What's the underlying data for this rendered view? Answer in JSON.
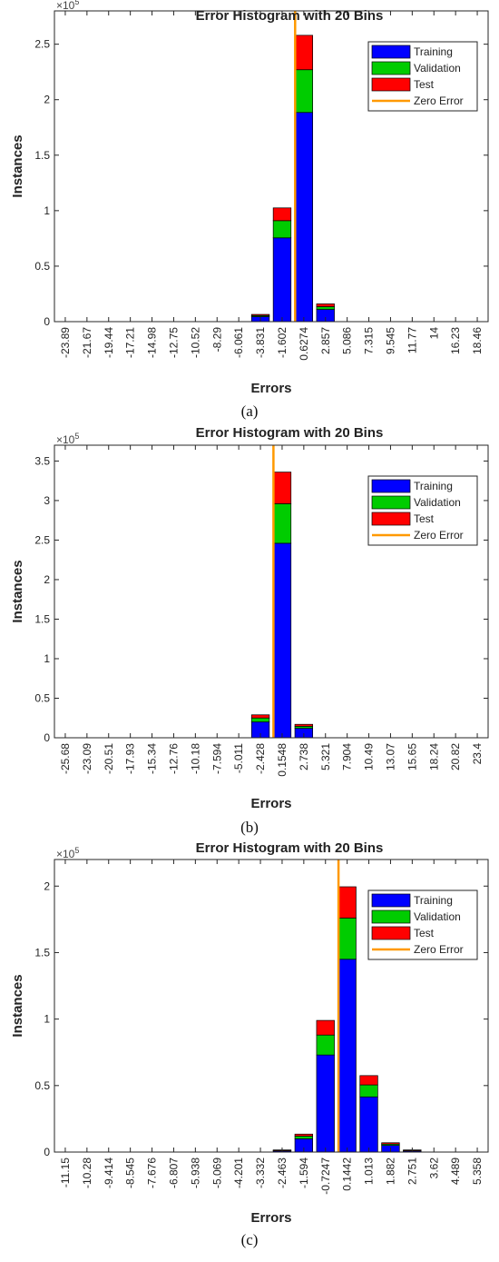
{
  "colors": {
    "training": "#0000ff",
    "validation": "#00cc00",
    "test": "#ff0000",
    "zero_error": "#ff9900",
    "axis": "#262626"
  },
  "chart_data": [
    {
      "type": "bar",
      "stacked": true,
      "title": "Error Histogram with 20 Bins",
      "xlabel": "Errors",
      "ylabel": "Instances",
      "y_multiplier": "×10",
      "y_multiplier_exp": "5",
      "caption": "(a)",
      "categories": [
        "-23.89",
        "-21.67",
        "-19.44",
        "-17.21",
        "-14.98",
        "-12.75",
        "-10.52",
        "-8.29",
        "-6.061",
        "-3.831",
        "-1.602",
        "0.6274",
        "2.857",
        "5.086",
        "7.315",
        "9.545",
        "11.77",
        "14",
        "16.23",
        "18.46"
      ],
      "series": [
        {
          "name": "Training",
          "values": [
            0,
            0,
            0,
            0,
            0,
            0,
            0,
            0,
            0,
            0.045,
            0.755,
            1.885,
            0.11,
            0,
            0,
            0,
            0,
            0,
            0,
            0
          ]
        },
        {
          "name": "Validation",
          "values": [
            0,
            0,
            0,
            0,
            0,
            0,
            0,
            0,
            0,
            0.01,
            0.155,
            0.385,
            0.025,
            0,
            0,
            0,
            0,
            0,
            0,
            0
          ]
        },
        {
          "name": "Test",
          "values": [
            0,
            0,
            0,
            0,
            0,
            0,
            0,
            0,
            0,
            0.01,
            0.115,
            0.31,
            0.025,
            0,
            0,
            0,
            0,
            0,
            0,
            0
          ]
        }
      ],
      "zero_error_label": "Zero Error",
      "zero_error_category": "0.6274",
      "ylim": [
        0,
        2.8
      ],
      "yticks": [
        0,
        0.5,
        1,
        1.5,
        2,
        2.5
      ],
      "ytick_labels": [
        "0",
        "0.5",
        "1",
        "1.5",
        "2",
        "2.5"
      ],
      "legend": "top-right"
    },
    {
      "type": "bar",
      "stacked": true,
      "title": "Error Histogram with 20 Bins",
      "xlabel": "Errors",
      "ylabel": "Instances",
      "y_multiplier": "×10",
      "y_multiplier_exp": "5",
      "caption": "(b)",
      "categories": [
        "-25.68",
        "-23.09",
        "-20.51",
        "-17.93",
        "-15.34",
        "-12.76",
        "-10.18",
        "-7.594",
        "-5.011",
        "-2.428",
        "0.1548",
        "2.738",
        "5.321",
        "7.904",
        "10.49",
        "13.07",
        "15.65",
        "18.24",
        "20.82",
        "23.4"
      ],
      "series": [
        {
          "name": "Training",
          "values": [
            0,
            0,
            0,
            0,
            0,
            0,
            0,
            0,
            0,
            0.2,
            2.46,
            0.12,
            0,
            0,
            0,
            0,
            0,
            0,
            0,
            0
          ]
        },
        {
          "name": "Validation",
          "values": [
            0,
            0,
            0,
            0,
            0,
            0,
            0,
            0,
            0,
            0.05,
            0.5,
            0.025,
            0,
            0,
            0,
            0,
            0,
            0,
            0,
            0
          ]
        },
        {
          "name": "Test",
          "values": [
            0,
            0,
            0,
            0,
            0,
            0,
            0,
            0,
            0,
            0.04,
            0.4,
            0.025,
            0,
            0,
            0,
            0,
            0,
            0,
            0,
            0
          ]
        }
      ],
      "zero_error_label": "Zero Error",
      "zero_error_category": "0.1548",
      "ylim": [
        0,
        3.7
      ],
      "yticks": [
        0,
        0.5,
        1,
        1.5,
        2,
        2.5,
        3,
        3.5
      ],
      "ytick_labels": [
        "0",
        "0.5",
        "1",
        "1.5",
        "2",
        "2.5",
        "3",
        "3.5"
      ],
      "legend": "top-right"
    },
    {
      "type": "bar",
      "stacked": true,
      "title": "Error Histogram with 20 Bins",
      "xlabel": "Errors",
      "ylabel": "Instances",
      "y_multiplier": "×10",
      "y_multiplier_exp": "5",
      "caption": "(c)",
      "categories": [
        "-11.15",
        "-10.28",
        "-9.414",
        "-8.545",
        "-7.676",
        "-6.807",
        "-5.938",
        "-5.069",
        "-4.201",
        "-3.332",
        "-2.463",
        "-1.594",
        "-0.7247",
        "0.1442",
        "1.013",
        "1.882",
        "2.751",
        "3.62",
        "4.489",
        "5.358"
      ],
      "series": [
        {
          "name": "Training",
          "values": [
            0,
            0,
            0,
            0,
            0,
            0,
            0,
            0,
            0,
            0,
            0.01,
            0.1,
            0.73,
            1.45,
            0.415,
            0.05,
            0.01,
            0,
            0,
            0
          ]
        },
        {
          "name": "Validation",
          "values": [
            0,
            0,
            0,
            0,
            0,
            0,
            0,
            0,
            0,
            0,
            0.003,
            0.02,
            0.15,
            0.31,
            0.09,
            0.01,
            0.003,
            0,
            0,
            0
          ]
        },
        {
          "name": "Test",
          "values": [
            0,
            0,
            0,
            0,
            0,
            0,
            0,
            0,
            0,
            0,
            0.003,
            0.015,
            0.11,
            0.235,
            0.07,
            0.01,
            0.003,
            0,
            0,
            0
          ]
        }
      ],
      "zero_error_label": "Zero Error",
      "zero_error_category": "0.1442",
      "ylim": [
        0,
        2.2
      ],
      "yticks": [
        0,
        0.5,
        1,
        1.5,
        2
      ],
      "ytick_labels": [
        "0",
        "0.5",
        "1",
        "1.5",
        "2"
      ],
      "legend": "top-right"
    }
  ]
}
